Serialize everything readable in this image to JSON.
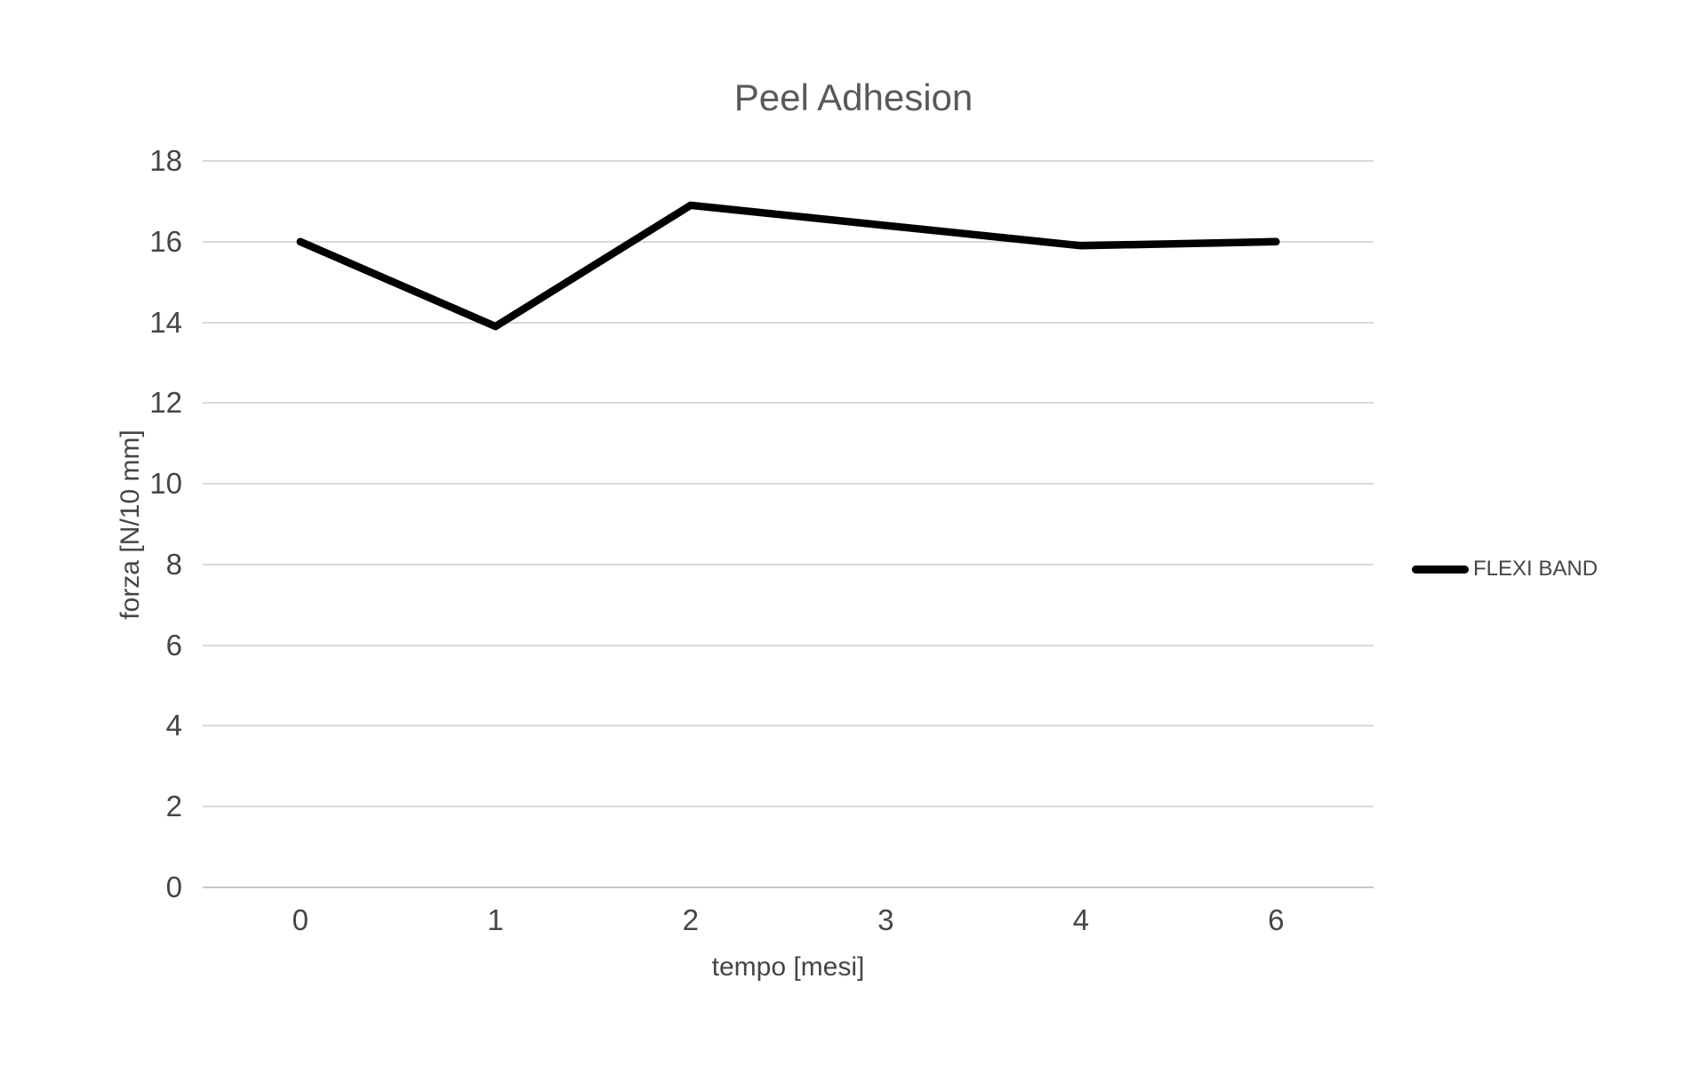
{
  "chart_data": {
    "type": "line",
    "title": "Peel Adhesion",
    "xlabel": "tempo [mesi]",
    "ylabel": "forza [N/10 mm]",
    "categories": [
      "0",
      "1",
      "2",
      "3",
      "4",
      "6"
    ],
    "series": [
      {
        "name": "FLEXI BAND",
        "color": "#000000",
        "values": [
          16,
          13.9,
          16.9,
          16.4,
          15.9,
          16
        ]
      }
    ],
    "ylim": [
      0,
      18
    ],
    "yticks": [
      0,
      2,
      4,
      6,
      8,
      10,
      12,
      14,
      16,
      18
    ],
    "grid": "horizontal",
    "legend_position": "right"
  },
  "colors": {
    "background": "#ffffff",
    "title_text": "#595959",
    "axis_text": "#454545",
    "gridline": "#d9d9d9",
    "baseline": "#c8c8c8",
    "series_line": "#000000"
  }
}
